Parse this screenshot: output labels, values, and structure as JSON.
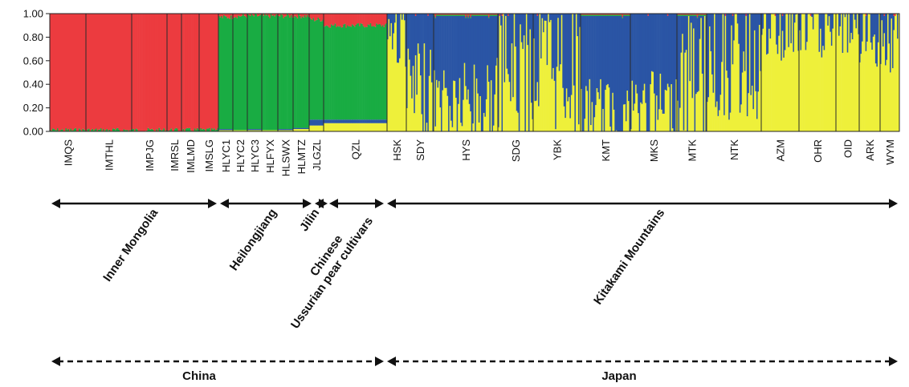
{
  "chart_data": {
    "type": "bar",
    "subtype": "stacked-admixture",
    "ylim": [
      0,
      1
    ],
    "y_ticks": [
      "0.00",
      "0.20",
      "0.40",
      "0.60",
      "0.80",
      "1.00"
    ],
    "clusters": [
      {
        "name": "cluster-1",
        "color": "#ec3b3f"
      },
      {
        "name": "cluster-2",
        "color": "#19ac43"
      },
      {
        "name": "cluster-3",
        "color": "#2a55a5"
      },
      {
        "name": "cluster-4",
        "color": "#eef03a"
      }
    ],
    "populations": [
      {
        "name": "IMQS",
        "mean": [
          0.99,
          0.01,
          0.0,
          0.0
        ]
      },
      {
        "name": "IMTHL",
        "mean": [
          0.99,
          0.01,
          0.0,
          0.0
        ]
      },
      {
        "name": "IMPJG",
        "mean": [
          0.99,
          0.01,
          0.0,
          0.0
        ]
      },
      {
        "name": "IMRSL",
        "mean": [
          0.99,
          0.01,
          0.0,
          0.0
        ]
      },
      {
        "name": "IMLMD",
        "mean": [
          0.99,
          0.01,
          0.0,
          0.0
        ]
      },
      {
        "name": "IMSLG",
        "mean": [
          0.99,
          0.01,
          0.0,
          0.0
        ]
      },
      {
        "name": "HLYC1",
        "mean": [
          0.03,
          0.95,
          0.01,
          0.01
        ]
      },
      {
        "name": "HLYC2",
        "mean": [
          0.02,
          0.97,
          0.0,
          0.01
        ]
      },
      {
        "name": "HLYC3",
        "mean": [
          0.02,
          0.96,
          0.01,
          0.01
        ]
      },
      {
        "name": "HLFYX",
        "mean": [
          0.02,
          0.97,
          0.0,
          0.01
        ]
      },
      {
        "name": "HLSWX",
        "mean": [
          0.02,
          0.96,
          0.01,
          0.01
        ]
      },
      {
        "name": "HLMTZ",
        "mean": [
          0.02,
          0.95,
          0.01,
          0.02
        ]
      },
      {
        "name": "JLGZL",
        "mean": [
          0.05,
          0.85,
          0.05,
          0.05
        ]
      },
      {
        "name": "QZL",
        "mean": [
          0.1,
          0.8,
          0.03,
          0.07
        ]
      },
      {
        "name": "HSK",
        "mean": [
          0.0,
          0.0,
          0.15,
          0.85
        ]
      },
      {
        "name": "SDY",
        "mean": [
          0.0,
          0.0,
          0.7,
          0.3
        ]
      },
      {
        "name": "HYS",
        "mean": [
          0.01,
          0.01,
          0.75,
          0.23
        ]
      },
      {
        "name": "SDG",
        "mean": [
          0.0,
          0.0,
          0.5,
          0.5
        ]
      },
      {
        "name": "YBK",
        "mean": [
          0.0,
          0.0,
          0.45,
          0.55
        ]
      },
      {
        "name": "KMT",
        "mean": [
          0.01,
          0.01,
          0.85,
          0.13
        ]
      },
      {
        "name": "MKS",
        "mean": [
          0.0,
          0.0,
          0.82,
          0.18
        ]
      },
      {
        "name": "MTK",
        "mean": [
          0.01,
          0.01,
          0.5,
          0.48
        ]
      },
      {
        "name": "NTK",
        "mean": [
          0.0,
          0.0,
          0.4,
          0.6
        ]
      },
      {
        "name": "AZM",
        "mean": [
          0.0,
          0.0,
          0.15,
          0.85
        ]
      },
      {
        "name": "OHR",
        "mean": [
          0.0,
          0.0,
          0.12,
          0.88
        ]
      },
      {
        "name": "OID",
        "mean": [
          0.0,
          0.0,
          0.1,
          0.9
        ]
      },
      {
        "name": "ARK",
        "mean": [
          0.0,
          0.0,
          0.15,
          0.85
        ]
      },
      {
        "name": "WYM",
        "mean": [
          0.0,
          0.0,
          0.2,
          0.8
        ]
      }
    ],
    "regions": [
      {
        "label": "Inner Mongolia",
        "from": "IMQS",
        "to": "IMSLG"
      },
      {
        "label": "Heilongjiang",
        "from": "HLYC1",
        "to": "HLMTZ"
      },
      {
        "label": "Jilin",
        "from": "JLGZL",
        "to": "JLGZL"
      },
      {
        "label": "Chinese Ussurian pear cultivars",
        "from": "QZL",
        "to": "QZL"
      },
      {
        "label": "Kitakami Mountains",
        "from": "HSK",
        "to": "WYM"
      }
    ],
    "countries": [
      {
        "label": "China",
        "from": "IMQS",
        "to": "QZL"
      },
      {
        "label": "Japan",
        "from": "HSK",
        "to": "WYM"
      }
    ]
  }
}
